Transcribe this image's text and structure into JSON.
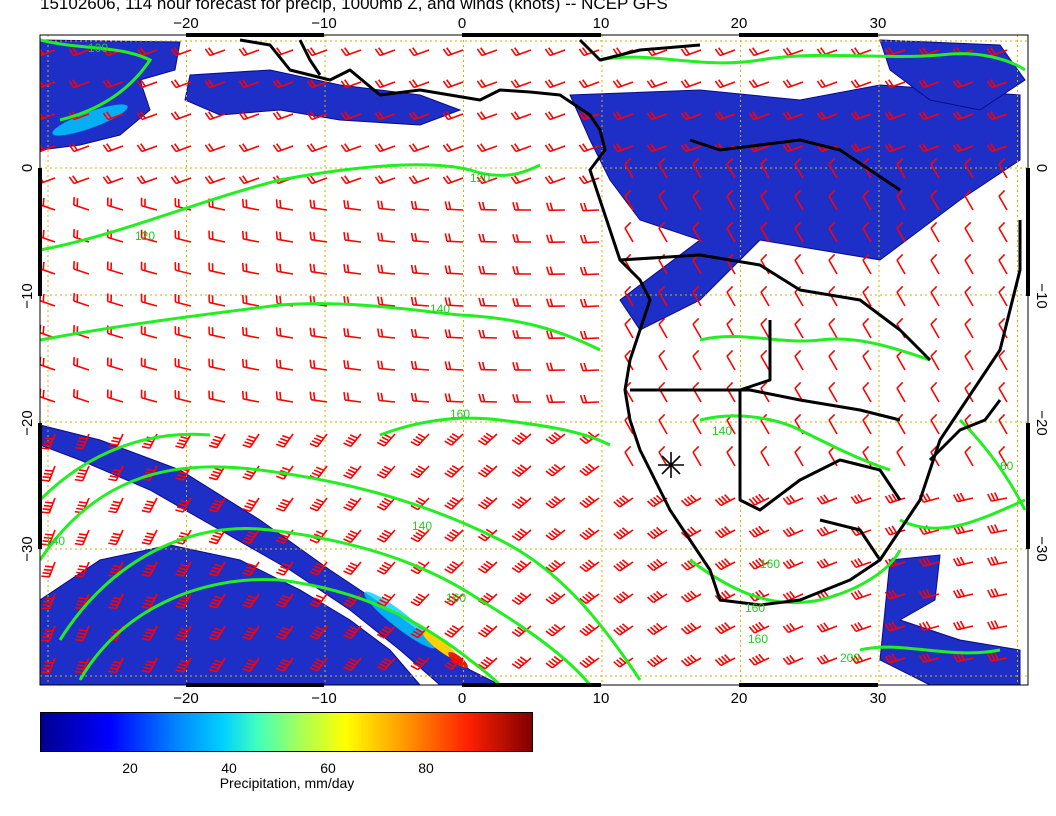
{
  "title": "15102606, 114 hour forecast for precip, 1000mb Z, and winds (knots) -- NCEP GFS",
  "axes": {
    "lon_ticks": [
      "−20",
      "−10",
      "0",
      "10",
      "20",
      "30"
    ],
    "lat_ticks": [
      "0",
      "−10",
      "−20",
      "−30"
    ],
    "lon_range": [
      -30,
      42
    ],
    "lat_range": [
      -40,
      10
    ]
  },
  "contour_labels": [
    "100",
    "120",
    "120",
    "140",
    "140",
    "140",
    "160",
    "160",
    "140",
    "160",
    "160",
    "160",
    "200",
    "60"
  ],
  "colorbar": {
    "ticks": [
      "20",
      "40",
      "60",
      "80"
    ],
    "label": "Precipitation, mm/day",
    "range": [
      0,
      100
    ],
    "colors": [
      "#00008f",
      "#0000ff",
      "#0080ff",
      "#00d0ff",
      "#3fffbf",
      "#9fff5f",
      "#ffff00",
      "#ff9000",
      "#ff2000",
      "#800000"
    ]
  },
  "colors": {
    "contour": "#22ee22",
    "barb": "#ff0000",
    "grid": "#d4b000",
    "coast": "#000000"
  },
  "marker": {
    "symbol": "asterisk",
    "lon": 15,
    "lat": -23
  }
}
